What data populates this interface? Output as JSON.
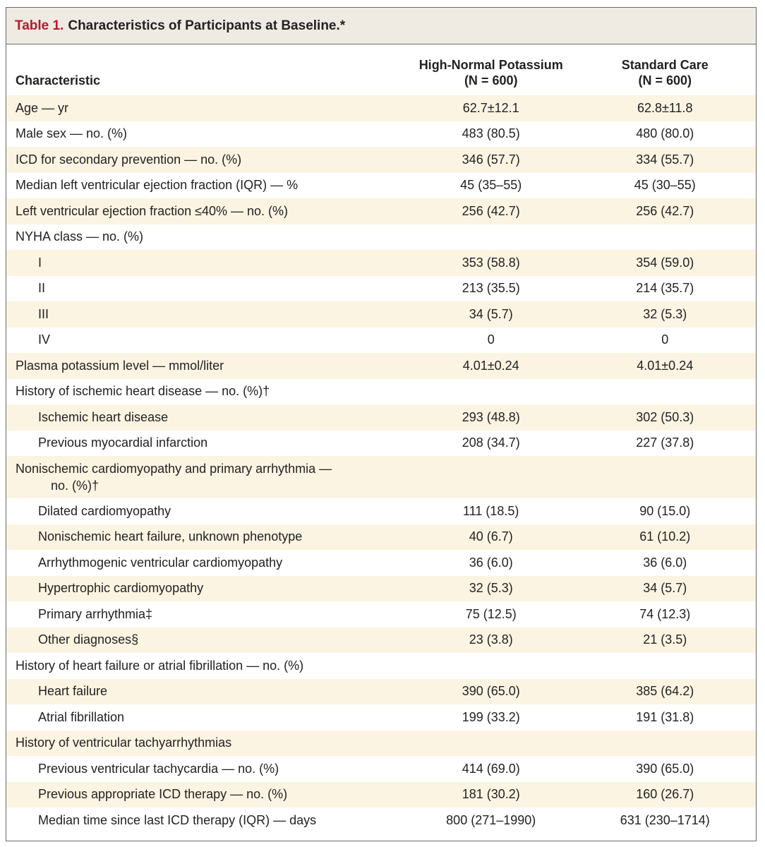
{
  "table": {
    "title_label": "Table 1.",
    "title_text": "Characteristics of Participants at Baseline.*",
    "headers": {
      "characteristic": "Characteristic",
      "group1_name": "High-Normal Potassium",
      "group1_n": "(N = 600)",
      "group2_name": "Standard Care",
      "group2_n": "(N = 600)"
    },
    "rows": [
      {
        "label": "Age — yr",
        "v1": "62.7±12.1",
        "v2": "62.8±11.8"
      },
      {
        "label": "Male sex — no. (%)",
        "v1": "483 (80.5)",
        "v2": "480 (80.0)"
      },
      {
        "label": "ICD for secondary prevention — no. (%)",
        "v1": "346 (57.7)",
        "v2": "334 (55.7)"
      },
      {
        "label": "Median left ventricular ejection fraction (IQR) — %",
        "v1": "45 (35–55)",
        "v2": "45 (30–55)"
      },
      {
        "label": "Left ventricular ejection fraction ≤40% — no. (%)",
        "v1": "256 (42.7)",
        "v2": "256 (42.7)"
      },
      {
        "label": "NYHA class — no. (%)",
        "v1": "",
        "v2": ""
      },
      {
        "label": "I",
        "v1": "353 (58.8)",
        "v2": "354 (59.0)"
      },
      {
        "label": "II",
        "v1": "213 (35.5)",
        "v2": "214 (35.7)"
      },
      {
        "label": "III",
        "v1": "34 (5.7)",
        "v2": "32 (5.3)"
      },
      {
        "label": "IV",
        "v1": "0",
        "v2": "0"
      },
      {
        "label": "Plasma potassium level — mmol/liter",
        "v1": "4.01±0.24",
        "v2": "4.01±0.24"
      },
      {
        "label": "History of ischemic heart disease — no. (%)†",
        "v1": "",
        "v2": ""
      },
      {
        "label": "Ischemic heart disease",
        "v1": "293 (48.8)",
        "v2": "302 (50.3)"
      },
      {
        "label": "Previous myocardial infarction",
        "v1": "208 (34.7)",
        "v2": "227 (37.8)"
      },
      {
        "label": "Nonischemic cardiomyopathy and primary arrhythmia —",
        "label_cont": "no. (%)†",
        "v1": "",
        "v2": ""
      },
      {
        "label": "Dilated cardiomyopathy",
        "v1": "111 (18.5)",
        "v2": "90 (15.0)"
      },
      {
        "label": "Nonischemic heart failure, unknown phenotype",
        "v1": "40 (6.7)",
        "v2": "61 (10.2)"
      },
      {
        "label": "Arrhythmogenic ventricular cardiomyopathy",
        "v1": "36 (6.0)",
        "v2": "36 (6.0)"
      },
      {
        "label": "Hypertrophic cardiomyopathy",
        "v1": "32 (5.3)",
        "v2": "34 (5.7)"
      },
      {
        "label": "Primary arrhythmia‡",
        "v1": "75 (12.5)",
        "v2": "74 (12.3)"
      },
      {
        "label": "Other diagnoses§",
        "v1": "23 (3.8)",
        "v2": "21 (3.5)"
      },
      {
        "label": "History of heart failure or atrial fibrillation — no. (%)",
        "v1": "",
        "v2": ""
      },
      {
        "label": "Heart failure",
        "v1": "390 (65.0)",
        "v2": "385 (64.2)"
      },
      {
        "label": "Atrial fibrillation",
        "v1": "199 (33.2)",
        "v2": "191 (31.8)"
      },
      {
        "label": "History of ventricular tachyarrhythmias",
        "v1": "",
        "v2": ""
      },
      {
        "label": "Previous ventricular tachycardia — no. (%)",
        "v1": "414 (69.0)",
        "v2": "390 (65.0)"
      },
      {
        "label": "Previous appropriate ICD therapy — no. (%)",
        "v1": "181 (30.2)",
        "v2": "160 (26.7)"
      },
      {
        "label": "Median time since last ICD therapy (IQR) — days",
        "v1": "800 (271–1990)",
        "v2": "631 (230–1714)"
      }
    ]
  }
}
